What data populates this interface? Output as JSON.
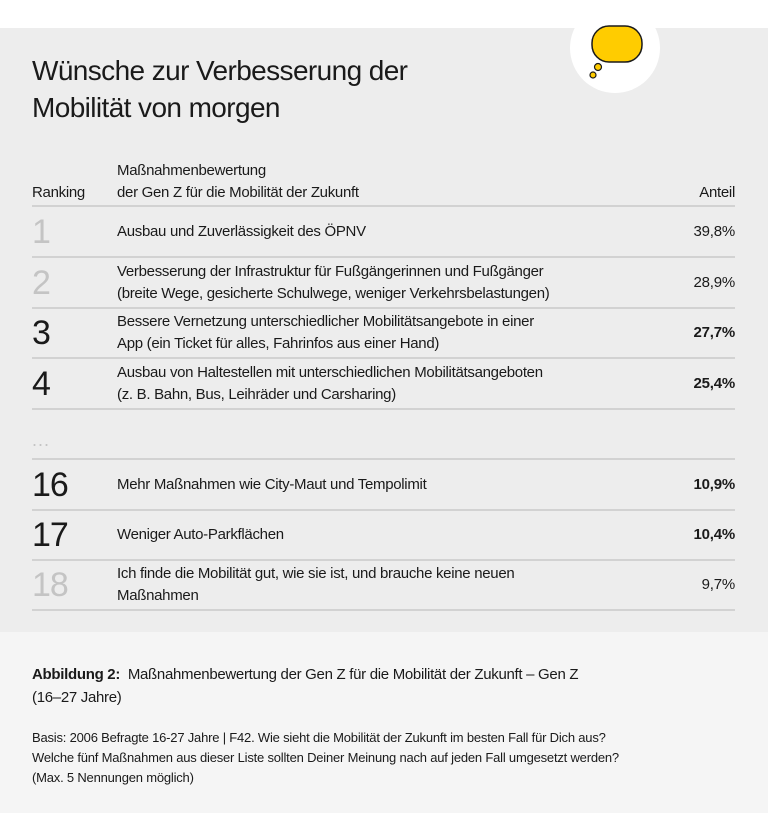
{
  "title_line1": "Wünsche zur Verbesserung der",
  "title_line2": "Mobilität von morgen",
  "icon": "thought-bubble-icon",
  "accent_color": "#ffcc00",
  "header": {
    "ranking": "Ranking",
    "measure_line1": "Maßnahmenbewertung",
    "measure_line2": "der Gen Z für die Mobilität der Zukunft",
    "share": "Anteil"
  },
  "rows": [
    {
      "rank": "1",
      "line1": "Ausbau und Zuverlässigkeit des ÖPNV",
      "line2": "",
      "share": "39,8%",
      "highlight": false
    },
    {
      "rank": "2",
      "line1": "Verbesserung der Infrastruktur für Fußgängerinnen und Fußgänger",
      "line2": "(breite Wege, gesicherte Schulwege, weniger Verkehrsbelastungen)",
      "share": "28,9%",
      "highlight": false
    },
    {
      "rank": "3",
      "line1": "Bessere Vernetzung unterschiedlicher Mobilitätsangebote in einer",
      "line2": "App (ein Ticket für alles, Fahrinfos aus einer Hand)",
      "share": "27,7%",
      "highlight": true
    },
    {
      "rank": "4",
      "line1": "Ausbau von Haltestellen mit unterschiedlichen Mobilitätsangeboten",
      "line2": "(z. B. Bahn, Bus, Leihräder und Carsharing)",
      "share": "25,4%",
      "highlight": true
    },
    {
      "rank": "16",
      "line1": "Mehr Maßnahmen wie City-Maut und Tempolimit",
      "line2": "",
      "share": "10,9%",
      "highlight": true
    },
    {
      "rank": "17",
      "line1": "Weniger  Auto-Parkflächen",
      "line2": "",
      "share": "10,4%",
      "highlight": true
    },
    {
      "rank": "18",
      "line1": "Ich finde die Mobilität gut, wie sie ist, und brauche keine neuen",
      "line2": "Maßnahmen",
      "share": "9,7%",
      "highlight": false
    }
  ],
  "ellipsis": "...",
  "caption": {
    "label": "Abbildung 2:",
    "text": "Maßnahmenbewertung der Gen Z für die Mobilität der Zukunft – Gen Z",
    "text2": "(16–27 Jahre)"
  },
  "basis": {
    "line1": "Basis: 2006 Befragte 16-27 Jahre | F42. Wie sieht die Mobilität der Zukunft im besten Fall für Dich aus?",
    "line2": "Welche fünf Maßnahmen aus dieser Liste sollten Deiner Meinung nach auf jeden Fall umgesetzt werden?",
    "line3": "(Max. 5 Nennungen möglich)"
  }
}
